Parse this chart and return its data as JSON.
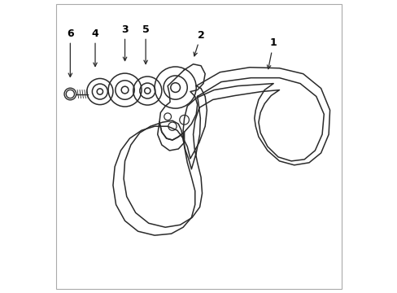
{
  "background_color": "#ffffff",
  "line_color": "#2a2a2a",
  "label_color": "#000000",
  "figsize": [
    4.89,
    3.6
  ],
  "dpi": 100,
  "border_color": "#cccccc"
}
